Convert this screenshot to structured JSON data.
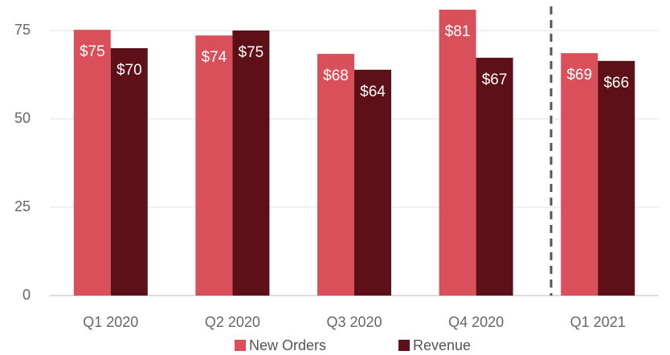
{
  "chart_data": {
    "type": "bar",
    "categories": [
      "Q1 2020",
      "Q2 2020",
      "Q3 2020",
      "Q4 2020",
      "Q1 2021"
    ],
    "series": [
      {
        "name": "New Orders",
        "color": "#d9505a",
        "values": [
          75.2,
          73.6,
          68.4,
          80.9,
          68.6
        ],
        "value_labels": [
          "$75",
          "$74",
          "$68",
          "$81",
          "$69"
        ]
      },
      {
        "name": "Revenue",
        "color": "#5e1018",
        "values": [
          70.0,
          75.0,
          63.9,
          67.3,
          66.4
        ],
        "value_labels": [
          "$70",
          "$75",
          "$64",
          "$67",
          "$66"
        ]
      }
    ],
    "ylim": [
      0,
      82
    ],
    "yticks": [
      0,
      25,
      50,
      75
    ],
    "grid": true,
    "legend": "bottom"
  }
}
